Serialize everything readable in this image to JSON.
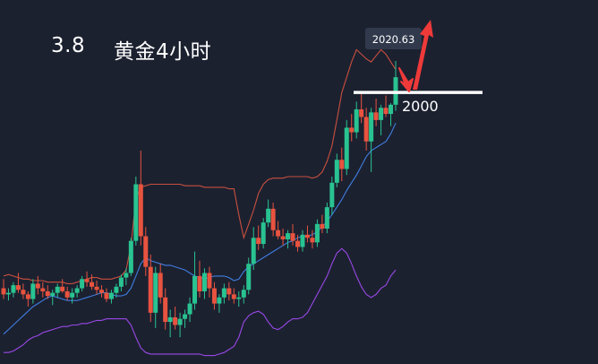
{
  "header": {
    "date": "3.8",
    "title": "黄金4小时"
  },
  "colors": {
    "background": "#1c2130",
    "up_candle": "#29c391",
    "down_candle": "#e8533f",
    "bollinger_band": "#c8503e",
    "moving_average": "#3f7ee0",
    "lower_band": "#9848e6",
    "level_line": "#ffffff",
    "arrow": "#ef3a3a",
    "callout_box": "#313a4c"
  },
  "chart_data": {
    "type": "candlestick",
    "title": "黄金4小时",
    "price_scale": {
      "min": 1826,
      "max": 2030
    },
    "high_marker": {
      "label": "2020.63",
      "value": 2020.63
    },
    "level": {
      "label": "2000",
      "value": 2000
    },
    "series": [
      {
        "name": "",
        "kind": "ohlc",
        "values": [
          [
            1872,
            1878,
            1865,
            1868
          ],
          [
            1868,
            1872,
            1864,
            1869
          ],
          [
            1869,
            1876,
            1866,
            1874
          ],
          [
            1874,
            1882,
            1869,
            1871
          ],
          [
            1871,
            1875,
            1865,
            1868
          ],
          [
            1868,
            1870,
            1860,
            1865
          ],
          [
            1865,
            1878,
            1862,
            1875
          ],
          [
            1875,
            1880,
            1868,
            1872
          ],
          [
            1872,
            1876,
            1866,
            1870
          ],
          [
            1870,
            1874,
            1865,
            1867
          ],
          [
            1867,
            1871,
            1861,
            1869
          ],
          [
            1869,
            1875,
            1866,
            1873
          ],
          [
            1873,
            1878,
            1869,
            1870
          ],
          [
            1870,
            1873,
            1864,
            1866
          ],
          [
            1866,
            1872,
            1862,
            1869
          ],
          [
            1869,
            1874,
            1866,
            1872
          ],
          [
            1872,
            1880,
            1870,
            1878
          ],
          [
            1878,
            1883,
            1873,
            1876
          ],
          [
            1876,
            1881,
            1871,
            1873
          ],
          [
            1873,
            1877,
            1868,
            1871
          ],
          [
            1871,
            1874,
            1866,
            1869
          ],
          [
            1869,
            1872,
            1863,
            1865
          ],
          [
            1865,
            1871,
            1862,
            1869
          ],
          [
            1869,
            1875,
            1866,
            1873
          ],
          [
            1873,
            1881,
            1870,
            1879
          ],
          [
            1879,
            1885,
            1874,
            1882
          ],
          [
            1882,
            1905,
            1880,
            1903
          ],
          [
            1903,
            1945,
            1900,
            1940
          ],
          [
            1940,
            1962,
            1900,
            1906
          ],
          [
            1906,
            1912,
            1880,
            1886
          ],
          [
            1886,
            1894,
            1850,
            1856
          ],
          [
            1856,
            1886,
            1846,
            1882
          ],
          [
            1882,
            1888,
            1862,
            1866
          ],
          [
            1866,
            1872,
            1845,
            1850
          ],
          [
            1850,
            1858,
            1840,
            1853
          ],
          [
            1853,
            1860,
            1845,
            1848
          ],
          [
            1848,
            1856,
            1840,
            1852
          ],
          [
            1852,
            1858,
            1846,
            1855
          ],
          [
            1855,
            1866,
            1850,
            1862
          ],
          [
            1862,
            1896,
            1858,
            1880
          ],
          [
            1880,
            1890,
            1866,
            1870
          ],
          [
            1870,
            1885,
            1865,
            1882
          ],
          [
            1882,
            1886,
            1866,
            1872
          ],
          [
            1872,
            1876,
            1858,
            1862
          ],
          [
            1862,
            1868,
            1856,
            1866
          ],
          [
            1866,
            1875,
            1862,
            1872
          ],
          [
            1872,
            1876,
            1864,
            1868
          ],
          [
            1868,
            1872,
            1862,
            1865
          ],
          [
            1865,
            1870,
            1860,
            1866
          ],
          [
            1866,
            1874,
            1862,
            1871
          ],
          [
            1871,
            1892,
            1868,
            1888
          ],
          [
            1888,
            1912,
            1884,
            1905
          ],
          [
            1905,
            1913,
            1897,
            1901
          ],
          [
            1901,
            1918,
            1898,
            1915
          ],
          [
            1915,
            1930,
            1912,
            1924
          ],
          [
            1924,
            1928,
            1906,
            1910
          ],
          [
            1910,
            1916,
            1904,
            1906
          ],
          [
            1906,
            1911,
            1900,
            1904
          ],
          [
            1904,
            1910,
            1898,
            1908
          ],
          [
            1908,
            1914,
            1900,
            1903
          ],
          [
            1903,
            1907,
            1896,
            1899
          ],
          [
            1899,
            1910,
            1896,
            1907
          ],
          [
            1907,
            1913,
            1902,
            1905
          ],
          [
            1905,
            1910,
            1898,
            1902
          ],
          [
            1902,
            1917,
            1899,
            1914
          ],
          [
            1914,
            1920,
            1908,
            1911
          ],
          [
            1911,
            1928,
            1908,
            1925
          ],
          [
            1925,
            1945,
            1920,
            1941
          ],
          [
            1941,
            1960,
            1938,
            1956
          ],
          [
            1956,
            1964,
            1942,
            1950
          ],
          [
            1950,
            1982,
            1946,
            1977
          ],
          [
            1977,
            1986,
            1968,
            1974
          ],
          [
            1974,
            1994,
            1970,
            1989
          ],
          [
            1989,
            2000,
            1980,
            1984
          ],
          [
            1984,
            1990,
            1962,
            1968
          ],
          [
            1968,
            1990,
            1948,
            1987
          ],
          [
            1987,
            1996,
            1978,
            1982
          ],
          [
            1982,
            1992,
            1972,
            1990
          ],
          [
            1990,
            1998,
            1984,
            1986
          ],
          [
            1986,
            1993,
            1978,
            1992
          ],
          [
            1992,
            2020.63,
            1988,
            2010
          ]
        ]
      },
      {
        "name": "",
        "kind": "upper_band",
        "values": [
          1880,
          1881,
          1880,
          1879,
          1878,
          1878,
          1877,
          1877,
          1877,
          1876,
          1876,
          1876,
          1876,
          1875,
          1875,
          1876,
          1877,
          1878,
          1879,
          1879,
          1878,
          1878,
          1878,
          1879,
          1880,
          1884,
          1900,
          1930,
          1938,
          1939,
          1940,
          1940,
          1940,
          1940,
          1940,
          1940,
          1940,
          1939,
          1939,
          1939,
          1939,
          1938,
          1938,
          1938,
          1938,
          1938,
          1937,
          1937,
          1920,
          1905,
          1914,
          1923,
          1934,
          1940,
          1943,
          1944,
          1944,
          1944,
          1945,
          1945,
          1945,
          1945,
          1945,
          1944,
          1945,
          1948,
          1955,
          1965,
          1982,
          2000,
          2010,
          2020,
          2028,
          2025,
          2022,
          2020,
          2024,
          2028,
          2025,
          2020,
          2015
        ]
      },
      {
        "name": "",
        "kind": "moving_average",
        "values": [
          1842,
          1845,
          1848,
          1851,
          1854,
          1857,
          1860,
          1862,
          1864,
          1866,
          1867,
          1866,
          1865,
          1864,
          1864,
          1864,
          1865,
          1866,
          1867,
          1868,
          1869,
          1869,
          1868,
          1867,
          1867,
          1868,
          1872,
          1880,
          1888,
          1892,
          1890,
          1889,
          1888,
          1887,
          1887,
          1886,
          1885,
          1884,
          1882,
          1880,
          1879,
          1878,
          1879,
          1880,
          1880,
          1880,
          1879,
          1877,
          1878,
          1883,
          1886,
          1888,
          1890,
          1892,
          1894,
          1896,
          1898,
          1900,
          1902,
          1903,
          1905,
          1906,
          1906,
          1907,
          1909,
          1912,
          1916,
          1920,
          1925,
          1930,
          1936,
          1941,
          1946,
          1952,
          1958,
          1962,
          1964,
          1966,
          1968,
          1973,
          1980
        ]
      },
      {
        "name": "",
        "kind": "lower_band",
        "values": [
          1830,
          1830,
          1831,
          1833,
          1835,
          1838,
          1840,
          1841,
          1843,
          1844,
          1845,
          1846,
          1847,
          1847,
          1848,
          1848,
          1849,
          1849,
          1850,
          1851,
          1851,
          1852,
          1852,
          1852,
          1852,
          1852,
          1848,
          1840,
          1833,
          1830,
          1829,
          1829,
          1829,
          1829,
          1829,
          1829,
          1829,
          1829,
          1829,
          1829,
          1829,
          1828,
          1828,
          1828,
          1829,
          1830,
          1832,
          1834,
          1840,
          1850,
          1854,
          1856,
          1857,
          1855,
          1850,
          1846,
          1845,
          1847,
          1850,
          1852,
          1852,
          1853,
          1856,
          1862,
          1868,
          1874,
          1880,
          1888,
          1895,
          1898,
          1895,
          1888,
          1880,
          1873,
          1868,
          1866,
          1868,
          1872,
          1874,
          1880,
          1884
        ]
      }
    ]
  }
}
